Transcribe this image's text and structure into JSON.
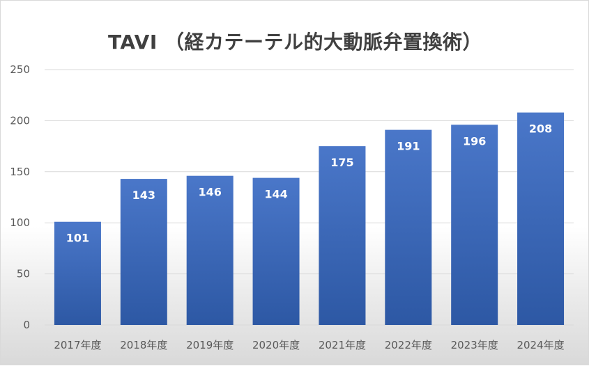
{
  "chart_data": {
    "type": "bar",
    "title": "TAVI （経カテーテル的大動脈弁置換術）",
    "xlabel": "",
    "ylabel": "",
    "categories": [
      "2017年度",
      "2018年度",
      "2019年度",
      "2020年度",
      "2021年度",
      "2022年度",
      "2023年度",
      "2024年度"
    ],
    "values": [
      101,
      143,
      146,
      144,
      175,
      191,
      196,
      208
    ],
    "ylim": [
      0,
      250
    ],
    "yticks": [
      0,
      50,
      100,
      150,
      200,
      250
    ],
    "grid": true,
    "legend": "none",
    "bar_color_top": "#4a77c9",
    "bar_color_bottom": "#2d58a4",
    "gridline_color": "#d9d9d9"
  }
}
